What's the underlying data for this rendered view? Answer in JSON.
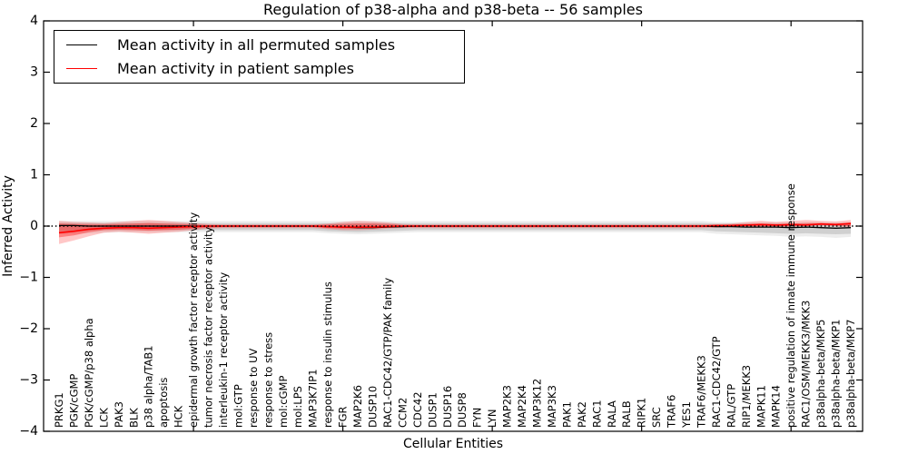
{
  "chart_data": {
    "type": "line",
    "title": "Regulation of p38-alpha and p38-beta -- 56 samples",
    "xlabel": "Cellular Entities",
    "ylabel": "Inferred Activity",
    "ylim": [
      -4,
      4
    ],
    "yticks": [
      -4,
      -3,
      -2,
      -1,
      0,
      1,
      2,
      3,
      4
    ],
    "xtick_indices": [
      9,
      19,
      29,
      39,
      49
    ],
    "grid": false,
    "legend_position": "upper-left",
    "zero_line": {
      "color": "#000000",
      "style": "dotted"
    },
    "categories": [
      "PRKG1",
      "PGK/cGMP",
      "PGK/cGMP/p38 alpha",
      "LCK",
      "PAK3",
      "BLK",
      "p38 alpha/TAB1",
      "apoptosis",
      "HCK",
      "epidermal growth factor receptor activity",
      "tumor necrosis factor receptor activity",
      "interleukin-1 receptor activity",
      "mol:GTP",
      "response to UV",
      "response to stress",
      "mol:cGMP",
      "mol:LPS",
      "MAP3K7IP1",
      "response to insulin stimulus",
      "FGR",
      "MAP2K6",
      "DUSP10",
      "RAC1-CDC42/GTP/PAK family",
      "CCM2",
      "CDC42",
      "DUSP1",
      "DUSP16",
      "DUSP8",
      "FYN",
      "LYN",
      "MAP2K3",
      "MAP2K4",
      "MAP3K12",
      "MAP3K3",
      "PAK1",
      "PAK2",
      "RAC1",
      "RALA",
      "RALB",
      "RIPK1",
      "SRC",
      "TRAF6",
      "YES1",
      "TRAF6/MEKK3",
      "RAC1-CDC42/GTP",
      "RAL/GTP",
      "RIP1/MEKK3",
      "MAPK11",
      "MAPK14",
      "positive regulation of innate immune response",
      "RAC1/OSM/MEKK3/MKK3",
      "p38alpha-beta/MKP5",
      "p38alpha-beta/MKP1",
      "p38alpha-beta/MKP7"
    ],
    "series": [
      {
        "name": "Mean activity in all permuted samples",
        "color": "#000000",
        "values": [
          0.01,
          0.01,
          0,
          0,
          0,
          0,
          0,
          0,
          0,
          0,
          0,
          0,
          0,
          0,
          0,
          0,
          0,
          0,
          -0.01,
          -0.02,
          -0.03,
          -0.03,
          -0.02,
          -0.01,
          0,
          0,
          0,
          0,
          0,
          0,
          0,
          0,
          0,
          0,
          0,
          0,
          0,
          0,
          0,
          0,
          0,
          0,
          0,
          0,
          -0.01,
          -0.01,
          -0.02,
          -0.02,
          -0.02,
          -0.03,
          -0.02,
          -0.03,
          -0.04,
          -0.03
        ]
      },
      {
        "name": "Mean activity in patient samples",
        "color": "#ff0000",
        "values": [
          -0.13,
          -0.1,
          -0.06,
          -0.04,
          -0.03,
          -0.03,
          -0.04,
          -0.03,
          -0.02,
          -0.01,
          0,
          0,
          0,
          0,
          0,
          0,
          0,
          0,
          -0.01,
          -0.02,
          -0.02,
          -0.02,
          -0.01,
          0,
          0,
          0,
          0,
          0,
          0,
          0,
          0,
          0,
          0,
          0,
          0,
          0,
          0,
          0,
          0,
          0,
          0,
          0,
          0,
          0,
          0.01,
          0.01,
          0.02,
          0.03,
          0.02,
          0.03,
          0.02,
          0.04,
          0.03,
          0.05
        ]
      }
    ],
    "bands": [
      {
        "name": "permuted-band-outer",
        "color": "#000000",
        "opacity": 0.07,
        "upper": [
          0.1,
          0.1,
          0.1,
          0.1,
          0.1,
          0.1,
          0.1,
          0.1,
          0.1,
          0.1,
          0.1,
          0.1,
          0.1,
          0.1,
          0.1,
          0.1,
          0.1,
          0.1,
          0.1,
          0.1,
          0.1,
          0.1,
          0.1,
          0.1,
          0.1,
          0.1,
          0.1,
          0.1,
          0.1,
          0.1,
          0.1,
          0.1,
          0.1,
          0.1,
          0.1,
          0.1,
          0.1,
          0.1,
          0.1,
          0.1,
          0.1,
          0.1,
          0.1,
          0.1,
          0.08,
          0.08,
          0.08,
          0.08,
          0.08,
          0.08,
          0.08,
          0.08,
          0.08,
          0.08
        ],
        "lower": [
          -0.16,
          -0.15,
          -0.14,
          -0.13,
          -0.12,
          -0.12,
          -0.12,
          -0.12,
          -0.12,
          -0.12,
          -0.12,
          -0.12,
          -0.12,
          -0.12,
          -0.12,
          -0.12,
          -0.12,
          -0.12,
          -0.14,
          -0.15,
          -0.16,
          -0.15,
          -0.14,
          -0.13,
          -0.12,
          -0.12,
          -0.12,
          -0.12,
          -0.12,
          -0.12,
          -0.12,
          -0.12,
          -0.12,
          -0.12,
          -0.12,
          -0.12,
          -0.12,
          -0.12,
          -0.12,
          -0.12,
          -0.12,
          -0.12,
          -0.12,
          -0.12,
          -0.15,
          -0.16,
          -0.17,
          -0.18,
          -0.19,
          -0.21,
          -0.2,
          -0.21,
          -0.23,
          -0.21
        ]
      },
      {
        "name": "permuted-band-inner",
        "color": "#000000",
        "opacity": 0.12,
        "upper": [
          0.06,
          0.06,
          0.06,
          0.06,
          0.06,
          0.06,
          0.06,
          0.06,
          0.06,
          0.06,
          0.06,
          0.06,
          0.06,
          0.06,
          0.06,
          0.06,
          0.06,
          0.06,
          0.06,
          0.06,
          0.06,
          0.06,
          0.06,
          0.06,
          0.06,
          0.06,
          0.06,
          0.06,
          0.06,
          0.06,
          0.06,
          0.06,
          0.06,
          0.06,
          0.06,
          0.06,
          0.06,
          0.06,
          0.06,
          0.06,
          0.06,
          0.06,
          0.06,
          0.06,
          0.05,
          0.05,
          0.05,
          0.05,
          0.05,
          0.05,
          0.05,
          0.05,
          0.05,
          0.05
        ],
        "lower": [
          -0.1,
          -0.1,
          -0.09,
          -0.08,
          -0.08,
          -0.08,
          -0.08,
          -0.08,
          -0.08,
          -0.08,
          -0.08,
          -0.08,
          -0.08,
          -0.08,
          -0.08,
          -0.08,
          -0.08,
          -0.08,
          -0.1,
          -0.11,
          -0.12,
          -0.11,
          -0.1,
          -0.09,
          -0.08,
          -0.08,
          -0.08,
          -0.08,
          -0.08,
          -0.08,
          -0.08,
          -0.08,
          -0.08,
          -0.08,
          -0.08,
          -0.08,
          -0.08,
          -0.08,
          -0.08,
          -0.08,
          -0.08,
          -0.08,
          -0.08,
          -0.08,
          -0.1,
          -0.11,
          -0.12,
          -0.13,
          -0.14,
          -0.15,
          -0.14,
          -0.15,
          -0.16,
          -0.15
        ]
      },
      {
        "name": "patient-band-outer",
        "color": "#ff0000",
        "opacity": 0.22,
        "upper": [
          0.1,
          0.08,
          0.07,
          0.06,
          0.08,
          0.1,
          0.12,
          0.1,
          0.08,
          0.06,
          0.04,
          0.03,
          0.03,
          0.03,
          0.03,
          0.03,
          0.03,
          0.03,
          0.05,
          0.08,
          0.1,
          0.09,
          0.07,
          0.04,
          0.03,
          0.03,
          0.03,
          0.03,
          0.03,
          0.03,
          0.03,
          0.03,
          0.03,
          0.03,
          0.03,
          0.03,
          0.03,
          0.03,
          0.03,
          0.03,
          0.03,
          0.03,
          0.03,
          0.03,
          0.04,
          0.05,
          0.08,
          0.1,
          0.08,
          0.1,
          0.12,
          0.1,
          0.09,
          0.12
        ],
        "lower": [
          -0.35,
          -0.28,
          -0.2,
          -0.13,
          -0.11,
          -0.13,
          -0.15,
          -0.13,
          -0.11,
          -0.08,
          -0.05,
          -0.04,
          -0.04,
          -0.04,
          -0.04,
          -0.04,
          -0.04,
          -0.04,
          -0.06,
          -0.08,
          -0.08,
          -0.07,
          -0.05,
          -0.04,
          -0.04,
          -0.04,
          -0.04,
          -0.04,
          -0.04,
          -0.04,
          -0.04,
          -0.04,
          -0.04,
          -0.04,
          -0.04,
          -0.04,
          -0.04,
          -0.04,
          -0.04,
          -0.04,
          -0.04,
          -0.04,
          -0.04,
          -0.04,
          -0.03,
          -0.02,
          -0.02,
          -0.02,
          -0.02,
          -0.01,
          0,
          0.01,
          0,
          -0.02
        ]
      },
      {
        "name": "patient-band-inner",
        "color": "#ff0000",
        "opacity": 0.35,
        "upper": [
          0.05,
          0.04,
          0.03,
          0.03,
          0.04,
          0.05,
          0.06,
          0.05,
          0.04,
          0.03,
          0.02,
          0.02,
          0.02,
          0.02,
          0.02,
          0.02,
          0.02,
          0.02,
          0.03,
          0.04,
          0.05,
          0.05,
          0.04,
          0.02,
          0.02,
          0.02,
          0.02,
          0.02,
          0.02,
          0.02,
          0.02,
          0.02,
          0.02,
          0.02,
          0.02,
          0.02,
          0.02,
          0.02,
          0.02,
          0.02,
          0.02,
          0.02,
          0.02,
          0.02,
          0.02,
          0.03,
          0.04,
          0.05,
          0.04,
          0.05,
          0.06,
          0.06,
          0.05,
          0.07
        ],
        "lower": [
          -0.22,
          -0.18,
          -0.12,
          -0.08,
          -0.07,
          -0.08,
          -0.09,
          -0.08,
          -0.07,
          -0.05,
          -0.03,
          -0.02,
          -0.02,
          -0.02,
          -0.02,
          -0.02,
          -0.02,
          -0.02,
          -0.04,
          -0.05,
          -0.05,
          -0.04,
          -0.03,
          -0.02,
          -0.02,
          -0.02,
          -0.02,
          -0.02,
          -0.02,
          -0.02,
          -0.02,
          -0.02,
          -0.02,
          -0.02,
          -0.02,
          -0.02,
          -0.02,
          -0.02,
          -0.02,
          -0.02,
          -0.02,
          -0.02,
          -0.02,
          -0.02,
          -0.01,
          -0.01,
          0,
          0,
          0,
          0,
          0.01,
          0.02,
          0.01,
          0
        ]
      }
    ]
  }
}
